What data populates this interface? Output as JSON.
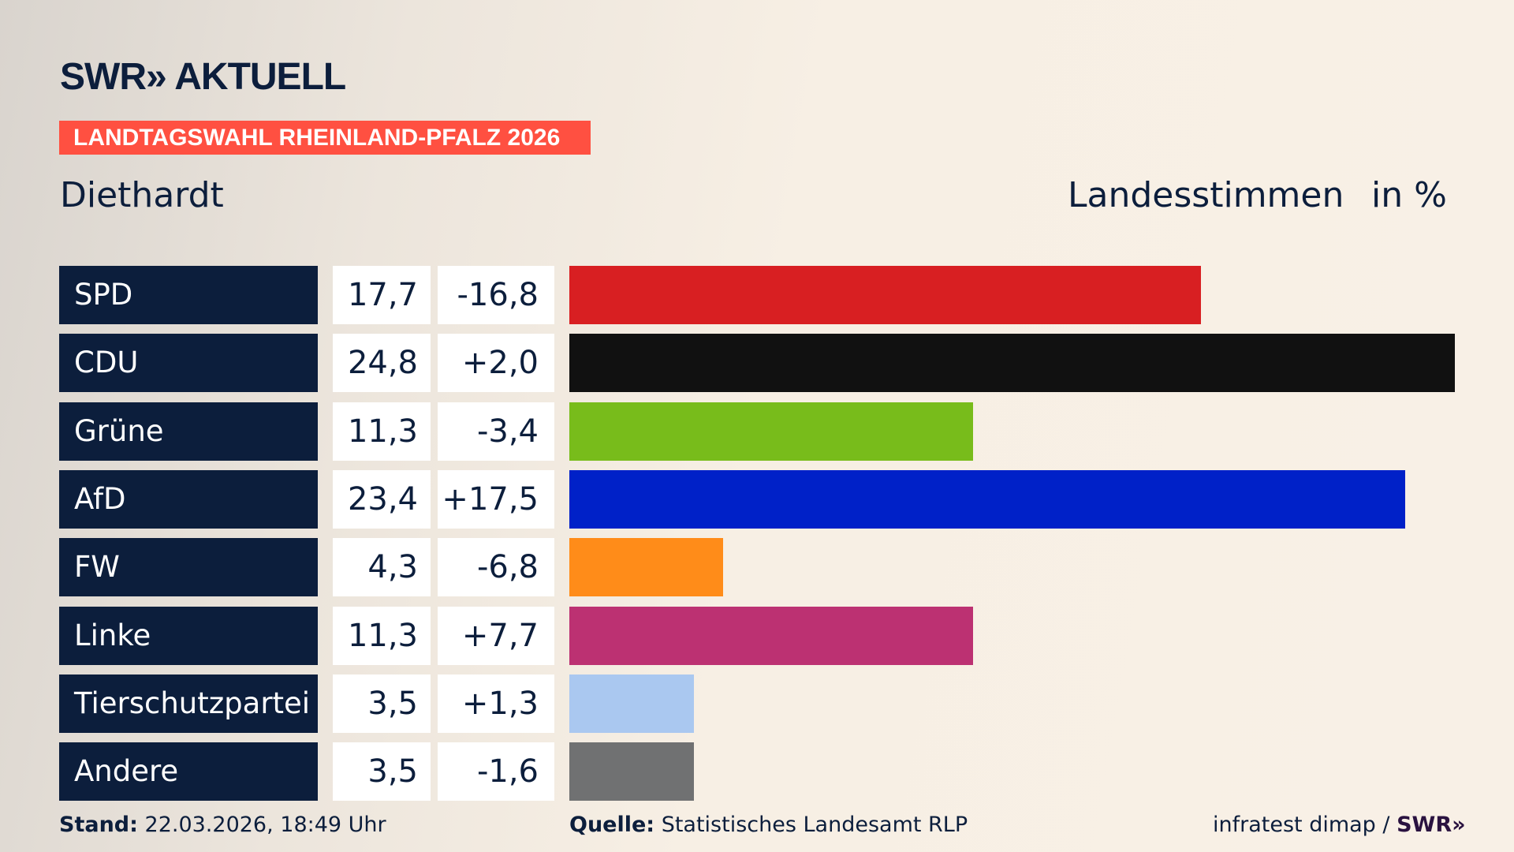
{
  "logo": "SWR» AKTUELL",
  "banner": "LANDTAGSWAHL RHEINLAND-PFALZ 2026",
  "place": "Diethardt",
  "label_votes": "Landesstimmen",
  "label_unit": "in %",
  "chart_data": {
    "type": "bar",
    "orientation": "horizontal",
    "categories": [
      "SPD",
      "CDU",
      "Grüne",
      "AfD",
      "FW",
      "Linke",
      "Tierschutzpartei",
      "Andere"
    ],
    "values": [
      17.7,
      24.8,
      11.3,
      23.4,
      4.3,
      11.3,
      3.5,
      3.5
    ],
    "value_labels": [
      "17,7",
      "24,8",
      "11,3",
      "23,4",
      "4,3",
      "11,3",
      "3,5",
      "3,5"
    ],
    "diff_labels": [
      "-16,8",
      "+2,0",
      "-3,4",
      "+17,5",
      "-6,8",
      "+7,7",
      "+1,3",
      "-1,6"
    ],
    "diffs": [
      -16.8,
      2.0,
      -3.4,
      17.5,
      -6.8,
      7.7,
      1.3,
      -1.6
    ],
    "colors": [
      "#d81f22",
      "#111111",
      "#78bc1b",
      "#0021c8",
      "#ff8c19",
      "#bc3172",
      "#aac8f0",
      "#707172"
    ],
    "xlim": [
      0,
      24.8
    ],
    "grid": false
  },
  "footer": {
    "stand_label": "Stand:",
    "stand_value": "22.03.2026, 18:49 Uhr",
    "source_label": "Quelle:",
    "source_value": "Statistisches Landesamt RLP",
    "credit": "infratest dimap / ",
    "credit_logo": "SWR»"
  }
}
